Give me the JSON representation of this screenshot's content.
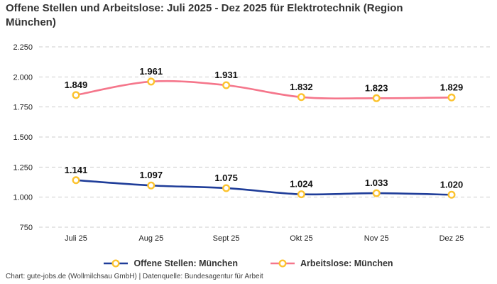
{
  "title": "Offene Stellen und Arbeitslose: Juli 2025 - Dez 2025 für Elektrotechnik (Region München)",
  "footer": "Chart: gute-jobs.de (Wollmilchsau GmbH) | Datenquelle: Bundesagentur für Arbeit",
  "colors": {
    "offene_stellen": "#1f3d99",
    "arbeitslose": "#f5768b",
    "marker_ring": "#fcc32f",
    "marker_fill": "#ffffff",
    "grid": "#cdcdcd",
    "tick_text": "#222222",
    "data_label_text": "#111111"
  },
  "legend": [
    {
      "label": "Offene Stellen: München",
      "color": "#1f3d99"
    },
    {
      "label": "Arbeitslose: München",
      "color": "#f5768b"
    }
  ],
  "chart_data": {
    "type": "line",
    "title": "Offene Stellen und Arbeitslose: Juli 2025 - Dez 2025 für Elektrotechnik (Region München)",
    "categories": [
      "Juli 25",
      "Aug 25",
      "Sept 25",
      "Okt 25",
      "Nov 25",
      "Dez 25"
    ],
    "series": [
      {
        "name": "Offene Stellen: München",
        "color": "#1f3d99",
        "values": [
          1141,
          1097,
          1075,
          1024,
          1033,
          1020
        ],
        "labels": [
          "1.141",
          "1.097",
          "1.075",
          "1.024",
          "1.033",
          "1.020"
        ]
      },
      {
        "name": "Arbeitslose: München",
        "color": "#f5768b",
        "values": [
          1849,
          1961,
          1931,
          1832,
          1823,
          1829
        ],
        "labels": [
          "1.849",
          "1.961",
          "1.931",
          "1.832",
          "1.823",
          "1.829"
        ]
      }
    ],
    "y_ticks": [
      2250,
      2000,
      1750,
      1500,
      1250,
      1000,
      750
    ],
    "y_tick_labels": [
      "2.250",
      "2.000",
      "1.750",
      "1.500",
      "1.250",
      "1.000",
      "750"
    ],
    "ylim": [
      750,
      2250
    ],
    "grid": "horizontal-dashed",
    "legend_position": "bottom",
    "marker": {
      "shape": "circle",
      "fill": "#ffffff",
      "stroke": "#fcc32f"
    }
  }
}
